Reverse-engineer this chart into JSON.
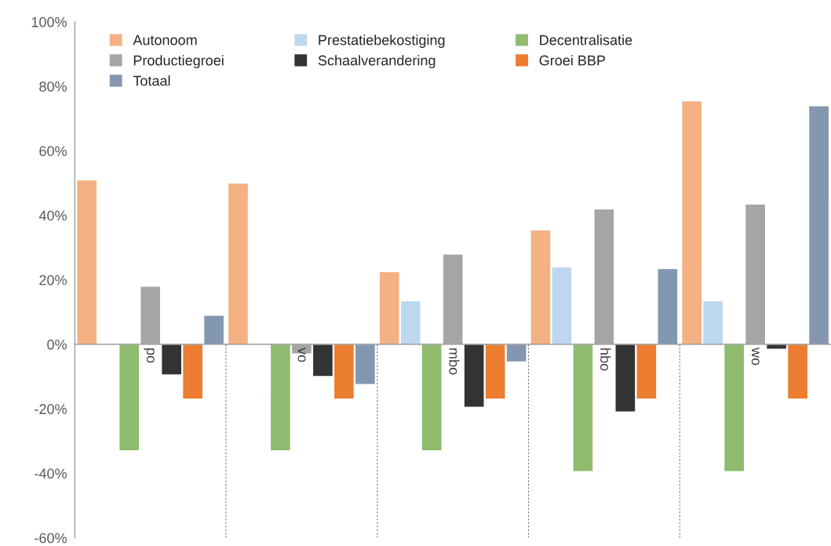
{
  "chart_data": {
    "type": "bar",
    "categories": [
      "po",
      "vo",
      "mbo",
      "hbo",
      "wo"
    ],
    "series": [
      {
        "name": "Autonoom",
        "color": "#f4b183",
        "values": [
          51,
          50,
          22.5,
          35.5,
          75.5
        ]
      },
      {
        "name": "Prestatiebekostiging",
        "color": "#bdd7ee",
        "values": [
          null,
          null,
          13.5,
          24,
          13.5
        ]
      },
      {
        "name": "Decentralisatie",
        "color": "#8fbb6e",
        "values": [
          -33,
          -33,
          -33,
          -39.5,
          -39.5
        ]
      },
      {
        "name": "Productiegroei",
        "color": "#a5a5a5",
        "values": [
          18,
          -3,
          28,
          42,
          43.5
        ]
      },
      {
        "name": "Schaalverandering",
        "color": "#333333",
        "values": [
          -9.5,
          -10,
          -19.5,
          -21,
          -1.5
        ]
      },
      {
        "name": "Groei BBP",
        "color": "#ed7d31",
        "values": [
          -17,
          -17,
          -17,
          -17,
          -17
        ]
      },
      {
        "name": "Totaal",
        "color": "#8497b0",
        "values": [
          9,
          -12.5,
          -5.5,
          23.5,
          74
        ]
      }
    ],
    "ylim": [
      -60,
      100
    ],
    "yticks": [
      {
        "value": -60,
        "label": "-60%"
      },
      {
        "value": -40,
        "label": "-40%"
      },
      {
        "value": -20,
        "label": "-20%"
      },
      {
        "value": 0,
        "label": "0%"
      },
      {
        "value": 20,
        "label": "20%"
      },
      {
        "value": 40,
        "label": "40%"
      },
      {
        "value": 60,
        "label": "60%"
      },
      {
        "value": 80,
        "label": "80%"
      },
      {
        "value": 100,
        "label": "100%"
      }
    ],
    "grid": false,
    "legend": "top left"
  }
}
